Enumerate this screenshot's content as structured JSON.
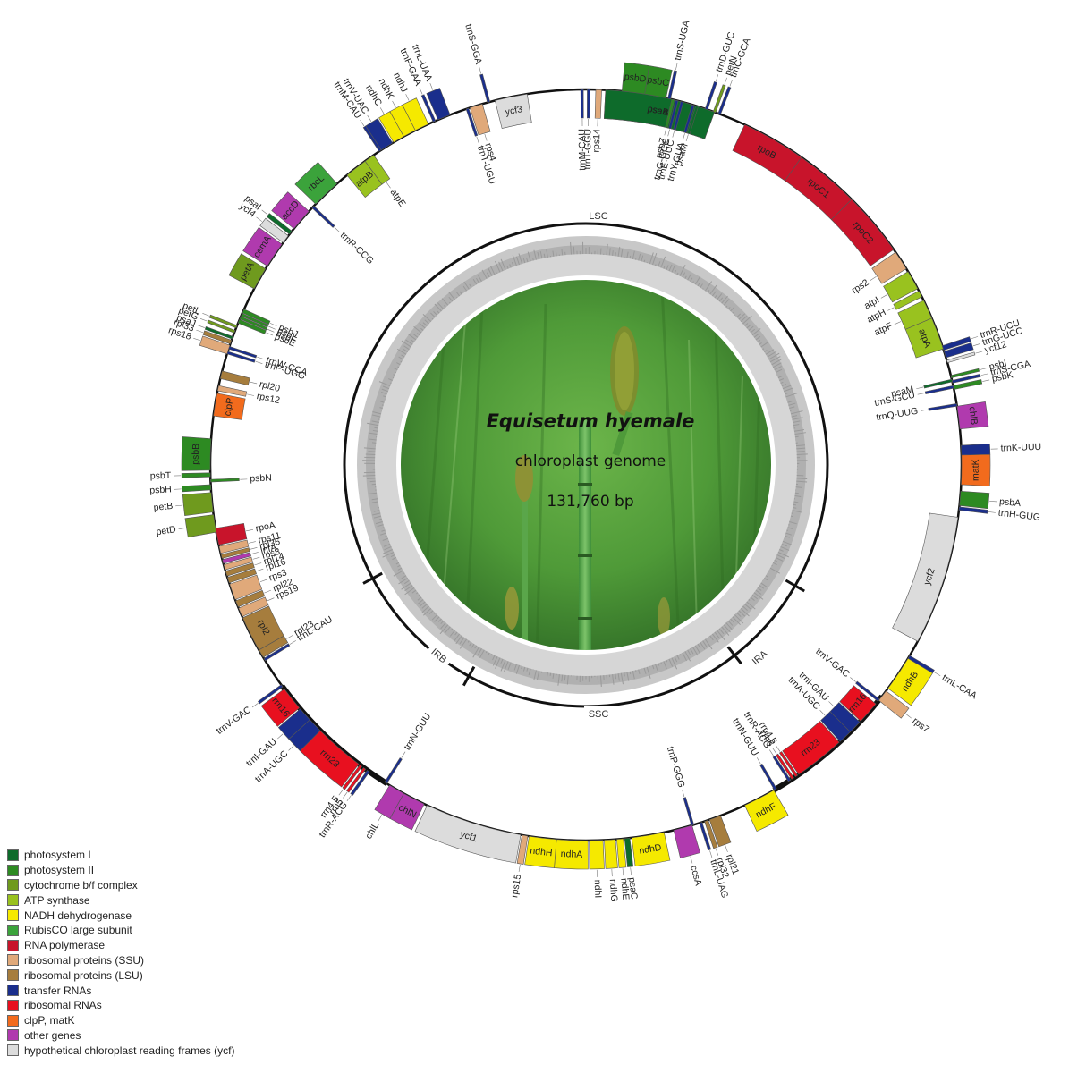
{
  "title": {
    "species": "Equisetum hyemale",
    "subtitle": "chloroplast genome",
    "size": "131,760 bp"
  },
  "regions": [
    {
      "id": "lsc",
      "label": "LSC",
      "angle": 0
    },
    {
      "id": "ira",
      "label": "IRA",
      "angle": 131
    },
    {
      "id": "ssc",
      "label": "SSC",
      "angle": 180
    },
    {
      "id": "irb",
      "label": "IRB",
      "angle": 228
    }
  ],
  "region_boundaries": [
    120,
    142,
    209,
    242
  ],
  "legend": [
    {
      "key": "ps1",
      "label": "photosystem I",
      "color": "#0e6b2b"
    },
    {
      "key": "ps2",
      "label": "photosystem II",
      "color": "#2d8a22"
    },
    {
      "key": "cytb",
      "label": "cytochrome b/f complex",
      "color": "#6f9a1e"
    },
    {
      "key": "atp",
      "label": "ATP synthase",
      "color": "#99c21f"
    },
    {
      "key": "ndh",
      "label": "NADH dehydrogenase",
      "color": "#f5e900"
    },
    {
      "key": "rbcl",
      "label": "RubisCO large subunit",
      "color": "#3ba33b"
    },
    {
      "key": "rpo",
      "label": "RNA polymerase",
      "color": "#c8142b"
    },
    {
      "key": "ssu",
      "label": "ribosomal proteins (SSU)",
      "color": "#e0a97a"
    },
    {
      "key": "lsu",
      "label": "ribosomal proteins (LSU)",
      "color": "#a67d3d"
    },
    {
      "key": "trna",
      "label": "transfer RNAs",
      "color": "#1a2e8c"
    },
    {
      "key": "rrna",
      "label": "ribosomal RNAs",
      "color": "#e8101f"
    },
    {
      "key": "clp",
      "label": "clpP, matK",
      "color": "#f26b1d"
    },
    {
      "key": "other",
      "label": "other genes",
      "color": "#b03aae"
    },
    {
      "key": "ycf",
      "label": "hypothetical chloroplast reading frames (ycf)",
      "color": "#dcdcdc"
    }
  ],
  "genes": [
    {
      "name": "psaA",
      "s": 3,
      "e": 20,
      "side": "in",
      "cat": "ps1"
    },
    {
      "name": "psaB",
      "s": 3,
      "e": 20,
      "side": "in",
      "cat": "ps1"
    },
    {
      "name": "rps14",
      "s": 1.5,
      "e": 2.4,
      "side": "in",
      "cat": "ssu"
    },
    {
      "name": "trnT-GGU",
      "s": 0.2,
      "e": 0.6,
      "side": "in",
      "cat": "trna"
    },
    {
      "name": "trnM-CAU",
      "s": -0.8,
      "e": -0.4,
      "side": "in",
      "cat": "trna"
    },
    {
      "name": "psbD",
      "s": 5.5,
      "e": 9,
      "side": "out",
      "cat": "ps2"
    },
    {
      "name": "psbC",
      "s": 9,
      "e": 12.3,
      "side": "out",
      "cat": "ps2"
    },
    {
      "name": "trnS-UGA",
      "s": 12.6,
      "e": 13.0,
      "side": "out",
      "cat": "trna"
    },
    {
      "name": "psbZ",
      "s": 13.2,
      "e": 13.6,
      "side": "in",
      "cat": "ps2"
    },
    {
      "name": "trnG-GCC",
      "s": 13.8,
      "e": 14.2,
      "side": "in",
      "cat": "trna"
    },
    {
      "name": "trnE-UUC",
      "s": 14.6,
      "e": 15.0,
      "side": "in",
      "cat": "trna"
    },
    {
      "name": "trnY-GUA",
      "s": 16.4,
      "e": 16.8,
      "side": "in",
      "cat": "trna"
    },
    {
      "name": "psaM",
      "s": 17.0,
      "e": 17.4,
      "side": "in",
      "cat": "ps1"
    },
    {
      "name": "trnD-GUC",
      "s": 18.5,
      "e": 18.9,
      "side": "out",
      "cat": "trna"
    },
    {
      "name": "petN",
      "s": 19.8,
      "e": 20.2,
      "side": "out",
      "cat": "cytb"
    },
    {
      "name": "trnC-GCA",
      "s": 20.6,
      "e": 21.0,
      "side": "out",
      "cat": "trna"
    },
    {
      "name": "rpoB",
      "s": 25,
      "e": 35,
      "side": "in",
      "cat": "rpo"
    },
    {
      "name": "rpoC1",
      "s": 35,
      "e": 45,
      "side": "in",
      "cat": "rpo"
    },
    {
      "name": "rpoC2",
      "s": 45,
      "e": 55,
      "side": "in",
      "cat": "rpo"
    },
    {
      "name": "rps2",
      "s": 55.5,
      "e": 58.5,
      "side": "in",
      "cat": "ssu"
    },
    {
      "name": "atpI",
      "s": 59,
      "e": 62,
      "side": "in",
      "cat": "atp"
    },
    {
      "name": "atpH",
      "s": 62.4,
      "e": 63.4,
      "side": "in",
      "cat": "atp"
    },
    {
      "name": "atpF",
      "s": 64,
      "e": 67,
      "side": "in",
      "cat": "atp"
    },
    {
      "name": "atpA",
      "s": 67,
      "e": 72,
      "side": "in",
      "cat": "atp"
    },
    {
      "name": "trnR-UCU",
      "s": 71.5,
      "e": 72.2,
      "side": "out",
      "cat": "trna"
    },
    {
      "name": "trnG-UCC",
      "s": 72.4,
      "e": 73.4,
      "side": "out",
      "cat": "trna"
    },
    {
      "name": "ycf12",
      "s": 73.8,
      "e": 74.2,
      "side": "out",
      "cat": "ycf"
    },
    {
      "name": "psbI",
      "s": 76.2,
      "e": 76.6,
      "side": "out",
      "cat": "ps2"
    },
    {
      "name": "trnS-CGA",
      "s": 77.0,
      "e": 77.4,
      "side": "out",
      "cat": "trna"
    },
    {
      "name": "psbK",
      "s": 77.8,
      "e": 78.4,
      "side": "out",
      "cat": "ps2"
    },
    {
      "name": "psaM",
      "s": 76.8,
      "e": 77.2,
      "side": "in",
      "cat": "ps1"
    },
    {
      "name": "trnS-GCU",
      "s": 77.8,
      "e": 78.2,
      "side": "in",
      "cat": "trna"
    },
    {
      "name": "trnQ-UUG",
      "s": 80.6,
      "e": 81.0,
      "side": "in",
      "cat": "trna"
    },
    {
      "name": "chlB",
      "s": 81,
      "e": 84.5,
      "side": "out",
      "cat": "other"
    },
    {
      "name": "trnK-UUU",
      "s": 87,
      "e": 88.5,
      "side": "out",
      "cat": "trna"
    },
    {
      "name": "matK",
      "s": 88.5,
      "e": 93,
      "side": "out",
      "cat": "clp"
    },
    {
      "name": "psbA",
      "s": 94,
      "e": 96.2,
      "side": "out",
      "cat": "ps2"
    },
    {
      "name": "trnH-GUG",
      "s": 96.4,
      "e": 96.9,
      "side": "out",
      "cat": "trna"
    },
    {
      "name": "ycf2",
      "s": 98,
      "e": 118,
      "side": "in",
      "cat": "ycf"
    },
    {
      "name": "trnL-CAA",
      "s": 120.5,
      "e": 121,
      "side": "out",
      "cat": "trna"
    },
    {
      "name": "ndhB",
      "s": 121,
      "e": 126.5,
      "side": "out",
      "cat": "ndh"
    },
    {
      "name": "rps7",
      "s": 127,
      "e": 128.8,
      "side": "out",
      "cat": "ssu"
    },
    {
      "name": "trnV-GAC",
      "s": 128.6,
      "e": 129,
      "side": "in",
      "cat": "trna"
    },
    {
      "name": "rrn16",
      "s": 129.5,
      "e": 133,
      "side": "in",
      "cat": "rrna"
    },
    {
      "name": "trnI-GAU",
      "s": 133.2,
      "e": 135.3,
      "side": "in",
      "cat": "trna"
    },
    {
      "name": "trnA-UGC",
      "s": 135.3,
      "e": 137.4,
      "side": "in",
      "cat": "trna"
    },
    {
      "name": "rrn23",
      "s": 137.6,
      "e": 145.5,
      "side": "in",
      "cat": "rrna"
    },
    {
      "name": "rrn4.5",
      "s": 145.7,
      "e": 146.1,
      "side": "in",
      "cat": "rrna"
    },
    {
      "name": "rrn5",
      "s": 146.4,
      "e": 146.8,
      "side": "in",
      "cat": "rrna"
    },
    {
      "name": "trnR-ACG",
      "s": 147.0,
      "e": 147.4,
      "side": "in",
      "cat": "trna"
    },
    {
      "name": "trnN-GUU",
      "s": 149.5,
      "e": 149.9,
      "side": "in",
      "cat": "trna"
    },
    {
      "name": "ndhF",
      "s": 150,
      "e": 155,
      "side": "out",
      "cat": "ndh"
    },
    {
      "name": "rpl21",
      "s": 159,
      "e": 160.8,
      "side": "out",
      "cat": "lsu"
    },
    {
      "name": "rpl32",
      "s": 161,
      "e": 161.6,
      "side": "out",
      "cat": "lsu"
    },
    {
      "name": "trnL-UAG",
      "s": 162,
      "e": 162.4,
      "side": "out",
      "cat": "trna"
    },
    {
      "name": "trnP-GGG",
      "s": 163.3,
      "e": 163.7,
      "side": "in",
      "cat": "trna"
    },
    {
      "name": "ccsA",
      "s": 163.6,
      "e": 166.5,
      "side": "out",
      "cat": "other"
    },
    {
      "name": "ndhD",
      "s": 168,
      "e": 173,
      "side": "out",
      "cat": "ndh"
    },
    {
      "name": "psaC",
      "s": 173.3,
      "e": 174.1,
      "side": "out",
      "cat": "ps1"
    },
    {
      "name": "ndhE",
      "s": 174.3,
      "e": 175.3,
      "side": "out",
      "cat": "ndh"
    },
    {
      "name": "ndhG",
      "s": 175.5,
      "e": 177.2,
      "side": "out",
      "cat": "ndh"
    },
    {
      "name": "ndhI",
      "s": 177.4,
      "e": 179.5,
      "side": "out",
      "cat": "ndh"
    },
    {
      "name": "ndhA",
      "s": 179.7,
      "e": 184.5,
      "side": "out",
      "cat": "ndh"
    },
    {
      "name": "ndhH",
      "s": 184.5,
      "e": 188.7,
      "side": "out",
      "cat": "ndh"
    },
    {
      "name": "rps15",
      "s": 188.9,
      "e": 189.8,
      "side": "out",
      "cat": "ssu"
    },
    {
      "name": "ycf1",
      "s": 190,
      "e": 205,
      "side": "out",
      "cat": "ycf"
    },
    {
      "name": "chlN",
      "s": 205.5,
      "e": 209,
      "side": "out",
      "cat": "other"
    },
    {
      "name": "chlL",
      "s": 209,
      "e": 211.5,
      "side": "out",
      "cat": "other"
    },
    {
      "name": "trnN-GUU",
      "s": 212,
      "e": 212.4,
      "side": "in",
      "cat": "trna"
    },
    {
      "name": "trnR-ACG",
      "s": 215.2,
      "e": 215.6,
      "side": "out",
      "cat": "trna"
    },
    {
      "name": "rrn5",
      "s": 215.9,
      "e": 216.3,
      "side": "out",
      "cat": "rrna"
    },
    {
      "name": "rrn4.5",
      "s": 216.6,
      "e": 217.0,
      "side": "out",
      "cat": "rrna"
    },
    {
      "name": "rrn23",
      "s": 217.2,
      "e": 225,
      "side": "out",
      "cat": "rrna"
    },
    {
      "name": "trnA-UGC",
      "s": 225,
      "e": 227.3,
      "side": "out",
      "cat": "trna"
    },
    {
      "name": "trnI-GAU",
      "s": 227.3,
      "e": 229.5,
      "side": "out",
      "cat": "trna"
    },
    {
      "name": "rrn16",
      "s": 229.7,
      "e": 233.4,
      "side": "out",
      "cat": "rrna"
    },
    {
      "name": "trnV-GAC",
      "s": 233.8,
      "e": 234.2,
      "side": "out",
      "cat": "trna"
    },
    {
      "name": "trnL-CAU",
      "s": 238.6,
      "e": 239,
      "side": "in",
      "cat": "trna"
    },
    {
      "name": "rpl23",
      "s": 239.2,
      "e": 240.5,
      "side": "in",
      "cat": "lsu"
    },
    {
      "name": "rpl2",
      "s": 240.5,
      "e": 246,
      "side": "in",
      "cat": "lsu"
    },
    {
      "name": "rps19",
      "s": 246.2,
      "e": 247.6,
      "side": "in",
      "cat": "ssu"
    },
    {
      "name": "rpl22",
      "s": 247.8,
      "e": 248.8,
      "side": "in",
      "cat": "lsu"
    },
    {
      "name": "rps3",
      "s": 249,
      "e": 251.5,
      "side": "in",
      "cat": "ssu"
    },
    {
      "name": "rpl16",
      "s": 251.7,
      "e": 252.6,
      "side": "in",
      "cat": "lsu"
    },
    {
      "name": "rpl14",
      "s": 252.8,
      "e": 253.6,
      "side": "in",
      "cat": "lsu"
    },
    {
      "name": "rps8",
      "s": 253.8,
      "e": 254.6,
      "side": "in",
      "cat": "ssu"
    },
    {
      "name": "infA",
      "s": 254.8,
      "e": 255.4,
      "side": "in",
      "cat": "other"
    },
    {
      "name": "rpl36",
      "s": 255.6,
      "e": 256.2,
      "side": "in",
      "cat": "lsu"
    },
    {
      "name": "rps11",
      "s": 256.4,
      "e": 257.5,
      "side": "in",
      "cat": "ssu"
    },
    {
      "name": "rpoA",
      "s": 257.7,
      "e": 260.3,
      "side": "in",
      "cat": "rpo"
    },
    {
      "name": "petD",
      "s": 259.7,
      "e": 262.4,
      "side": "out",
      "cat": "cytb"
    },
    {
      "name": "petB",
      "s": 262.8,
      "e": 265.8,
      "side": "out",
      "cat": "cytb"
    },
    {
      "name": "psbH",
      "s": 266.2,
      "e": 267,
      "side": "out",
      "cat": "ps2"
    },
    {
      "name": "psbN",
      "s": 267.4,
      "e": 267.8,
      "side": "in",
      "cat": "ps2"
    },
    {
      "name": "psbT",
      "s": 268.2,
      "e": 268.8,
      "side": "out",
      "cat": "ps2"
    },
    {
      "name": "psbB",
      "s": 269.2,
      "e": 274,
      "side": "out",
      "cat": "ps2"
    },
    {
      "name": "clpP",
      "s": 277.5,
      "e": 281,
      "side": "in",
      "cat": "clp"
    },
    {
      "name": "rps12",
      "s": 281.4,
      "e": 282.2,
      "side": "in",
      "cat": "ssu"
    },
    {
      "name": "rpl20",
      "s": 283.3,
      "e": 284.5,
      "side": "in",
      "cat": "lsu"
    },
    {
      "name": "trnP-UGG",
      "s": 287.2,
      "e": 287.6,
      "side": "in",
      "cat": "trna"
    },
    {
      "name": "trnW-CCA",
      "s": 288.0,
      "e": 288.4,
      "side": "in",
      "cat": "trna"
    },
    {
      "name": "rps18",
      "s": 287.2,
      "e": 288.6,
      "side": "out",
      "cat": "ssu"
    },
    {
      "name": "rpl33",
      "s": 288.8,
      "e": 289.4,
      "side": "out",
      "cat": "lsu"
    },
    {
      "name": "psaJ",
      "s": 289.6,
      "e": 290.0,
      "side": "out",
      "cat": "ps1"
    },
    {
      "name": "petG",
      "s": 290.6,
      "e": 291.0,
      "side": "out",
      "cat": "cytb"
    },
    {
      "name": "petL",
      "s": 291.4,
      "e": 291.8,
      "side": "out",
      "cat": "cytb"
    },
    {
      "name": "psbE",
      "s": 292.2,
      "e": 292.8,
      "side": "in",
      "cat": "ps2"
    },
    {
      "name": "psbF",
      "s": 292.9,
      "e": 293.3,
      "side": "in",
      "cat": "ps2"
    },
    {
      "name": "psbL",
      "s": 293.4,
      "e": 293.8,
      "side": "in",
      "cat": "ps2"
    },
    {
      "name": "psbJ",
      "s": 293.9,
      "e": 294.5,
      "side": "in",
      "cat": "ps2"
    },
    {
      "name": "petA",
      "s": 298,
      "e": 301.5,
      "side": "out",
      "cat": "cytb"
    },
    {
      "name": "cemA",
      "s": 302,
      "e": 306,
      "side": "out",
      "cat": "other"
    },
    {
      "name": "ycf4",
      "s": 306.3,
      "e": 307.6,
      "side": "out",
      "cat": "ycf"
    },
    {
      "name": "psaI",
      "s": 307.9,
      "e": 308.5,
      "side": "out",
      "cat": "ps1"
    },
    {
      "name": "accD",
      "s": 309,
      "e": 312.5,
      "side": "out",
      "cat": "other"
    },
    {
      "name": "trnR-CCG",
      "s": 313.2,
      "e": 313.6,
      "side": "in",
      "cat": "trna"
    },
    {
      "name": "rbcL",
      "s": 314,
      "e": 318.5,
      "side": "out",
      "cat": "rbcl"
    },
    {
      "name": "atpB",
      "s": 320.5,
      "e": 324,
      "side": "in",
      "cat": "atp"
    },
    {
      "name": "atpE",
      "s": 324,
      "e": 325.6,
      "side": "in",
      "cat": "atp"
    },
    {
      "name": "trnM-CAU",
      "s": 326.6,
      "e": 327,
      "side": "out",
      "cat": "trna"
    },
    {
      "name": "trnV-UAC",
      "s": 327,
      "e": 329,
      "side": "out",
      "cat": "trna"
    },
    {
      "name": "ndhC",
      "s": 329.2,
      "e": 331,
      "side": "out",
      "cat": "ndh"
    },
    {
      "name": "ndhK",
      "s": 331,
      "e": 333,
      "side": "out",
      "cat": "ndh"
    },
    {
      "name": "ndhJ",
      "s": 333,
      "e": 335.2,
      "side": "out",
      "cat": "ndh"
    },
    {
      "name": "trnF-GAA",
      "s": 336,
      "e": 336.4,
      "side": "out",
      "cat": "trna"
    },
    {
      "name": "trnL-UAA",
      "s": 336.8,
      "e": 338.8,
      "side": "out",
      "cat": "trna"
    },
    {
      "name": "trnT-UGU",
      "s": 341.4,
      "e": 341.8,
      "side": "in",
      "cat": "trna"
    },
    {
      "name": "rps4",
      "s": 342,
      "e": 344,
      "side": "in",
      "cat": "ssu"
    },
    {
      "name": "trnS-GGA",
      "s": 344.8,
      "e": 345.2,
      "side": "out",
      "cat": "trna"
    },
    {
      "name": "ycf3",
      "s": 346,
      "e": 351,
      "side": "in",
      "cat": "ycf"
    }
  ]
}
